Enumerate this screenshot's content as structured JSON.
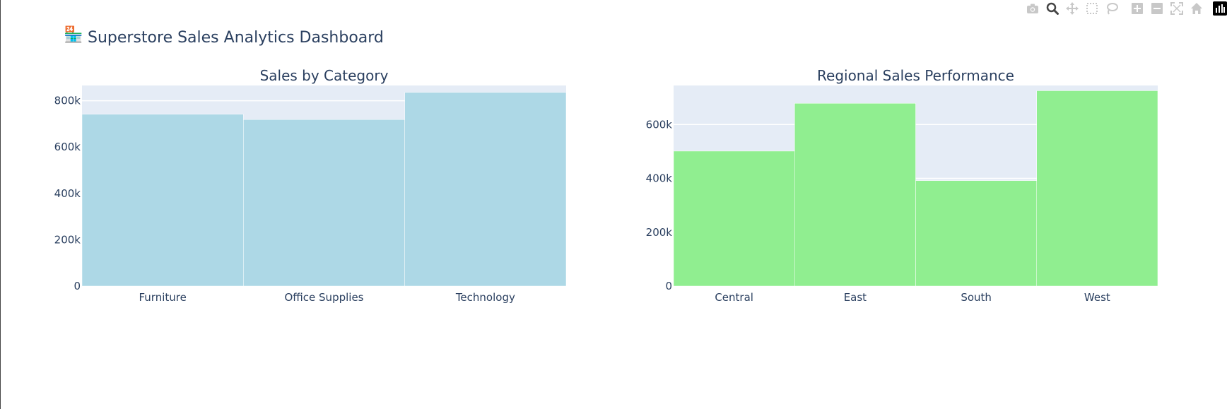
{
  "dashboard": {
    "icon": "🏪",
    "title": "Superstore Sales Analytics Dashboard"
  },
  "modebar": {
    "icons": [
      "camera-icon",
      "zoom-icon",
      "pan-icon",
      "box-select-icon",
      "lasso-icon",
      "zoom-in-icon",
      "zoom-out-icon",
      "autoscale-icon",
      "home-icon",
      "plotly-logo-icon"
    ]
  },
  "colors": {
    "category_bar": "#add8e6",
    "region_bar": "#90ee90",
    "plot_bg": "#e5ecf6",
    "text": "#2a3f5f"
  },
  "chart_data": [
    {
      "type": "bar",
      "title": "Sales by Category",
      "categories": [
        "Furniture",
        "Office Supplies",
        "Technology"
      ],
      "values": [
        742000,
        719047,
        836154
      ],
      "ylim": [
        0,
        866000
      ],
      "yticks": [
        0,
        200000,
        400000,
        600000,
        800000
      ],
      "ytick_labels": [
        "0",
        "200k",
        "400k",
        "600k",
        "800k"
      ],
      "grid": true,
      "color": "#add8e6"
    },
    {
      "type": "bar",
      "title": "Regional Sales Performance",
      "categories": [
        "Central",
        "East",
        "South",
        "West"
      ],
      "values": [
        501240,
        678781,
        391722,
        725458
      ],
      "ylim": [
        0,
        745000
      ],
      "yticks": [
        0,
        200000,
        400000,
        600000
      ],
      "ytick_labels": [
        "0",
        "200k",
        "400k",
        "600k"
      ],
      "grid": true,
      "color": "#90ee90"
    }
  ]
}
